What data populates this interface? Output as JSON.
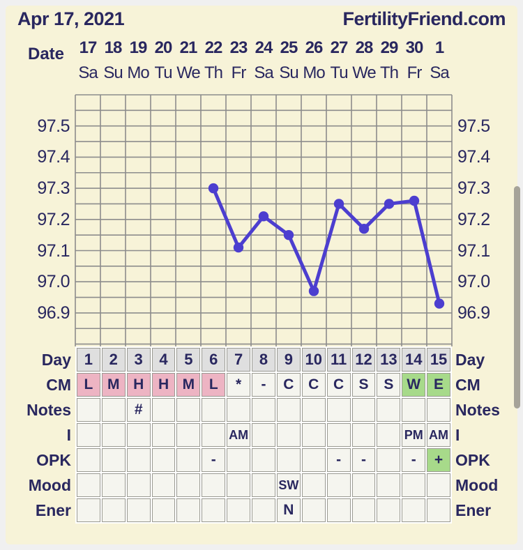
{
  "header": {
    "date_title": "Apr 17, 2021",
    "site": "FertilityFriend.com"
  },
  "axis": {
    "date_label": "Date",
    "dates": [
      "17",
      "18",
      "19",
      "20",
      "21",
      "22",
      "23",
      "24",
      "25",
      "26",
      "27",
      "28",
      "29",
      "30",
      "1"
    ],
    "weekdays": [
      "Sa",
      "Su",
      "Mo",
      "Tu",
      "We",
      "Th",
      "Fr",
      "Sa",
      "Su",
      "Mo",
      "Tu",
      "We",
      "Th",
      "Fr",
      "Sa"
    ]
  },
  "chart_data": {
    "type": "line",
    "columns": 15,
    "x_days": [
      6,
      7,
      8,
      9,
      10,
      11,
      12,
      13,
      14,
      15
    ],
    "values": [
      97.3,
      97.11,
      97.21,
      97.15,
      96.97,
      97.25,
      97.17,
      97.25,
      97.26,
      96.93
    ],
    "yticks": [
      97.5,
      97.4,
      97.3,
      97.2,
      97.1,
      97.0,
      96.9
    ],
    "ylim": [
      96.8,
      97.6
    ],
    "grid_step": 0.05,
    "grid": true,
    "line_color": "#4c3ecf"
  },
  "table": {
    "rows": [
      {
        "key": "day",
        "label": "Day",
        "cells": [
          {
            "t": "1",
            "bg": "day"
          },
          {
            "t": "2",
            "bg": "day"
          },
          {
            "t": "3",
            "bg": "day"
          },
          {
            "t": "4",
            "bg": "day"
          },
          {
            "t": "5",
            "bg": "day"
          },
          {
            "t": "6",
            "bg": "day"
          },
          {
            "t": "7",
            "bg": "day"
          },
          {
            "t": "8",
            "bg": "day"
          },
          {
            "t": "9",
            "bg": "day"
          },
          {
            "t": "10",
            "bg": "day"
          },
          {
            "t": "11",
            "bg": "day"
          },
          {
            "t": "12",
            "bg": "day"
          },
          {
            "t": "13",
            "bg": "day"
          },
          {
            "t": "14",
            "bg": "day"
          },
          {
            "t": "15",
            "bg": "day"
          }
        ]
      },
      {
        "key": "cm",
        "label": "CM",
        "cells": [
          {
            "t": "L",
            "bg": "pink"
          },
          {
            "t": "M",
            "bg": "pink"
          },
          {
            "t": "H",
            "bg": "pink"
          },
          {
            "t": "H",
            "bg": "pink"
          },
          {
            "t": "M",
            "bg": "pink"
          },
          {
            "t": "L",
            "bg": "pink"
          },
          {
            "t": "*"
          },
          {
            "t": "-"
          },
          {
            "t": "C"
          },
          {
            "t": "C"
          },
          {
            "t": "C"
          },
          {
            "t": "S"
          },
          {
            "t": "S"
          },
          {
            "t": "W",
            "bg": "green"
          },
          {
            "t": "E",
            "bg": "green"
          }
        ]
      },
      {
        "key": "notes",
        "label": "Notes",
        "cells": [
          {
            "t": ""
          },
          {
            "t": ""
          },
          {
            "t": "#"
          },
          {
            "t": ""
          },
          {
            "t": ""
          },
          {
            "t": ""
          },
          {
            "t": ""
          },
          {
            "t": ""
          },
          {
            "t": ""
          },
          {
            "t": ""
          },
          {
            "t": ""
          },
          {
            "t": ""
          },
          {
            "t": ""
          },
          {
            "t": ""
          },
          {
            "t": ""
          }
        ]
      },
      {
        "key": "i",
        "label": "I",
        "cells": [
          {
            "t": ""
          },
          {
            "t": ""
          },
          {
            "t": ""
          },
          {
            "t": ""
          },
          {
            "t": ""
          },
          {
            "t": ""
          },
          {
            "t": "AM"
          },
          {
            "t": ""
          },
          {
            "t": ""
          },
          {
            "t": ""
          },
          {
            "t": ""
          },
          {
            "t": ""
          },
          {
            "t": ""
          },
          {
            "t": "PM"
          },
          {
            "t": "AM"
          }
        ]
      },
      {
        "key": "opk",
        "label": "OPK",
        "cells": [
          {
            "t": ""
          },
          {
            "t": ""
          },
          {
            "t": ""
          },
          {
            "t": ""
          },
          {
            "t": ""
          },
          {
            "t": "-"
          },
          {
            "t": ""
          },
          {
            "t": ""
          },
          {
            "t": ""
          },
          {
            "t": ""
          },
          {
            "t": "-"
          },
          {
            "t": "-"
          },
          {
            "t": ""
          },
          {
            "t": "-"
          },
          {
            "t": "+",
            "bg": "green"
          }
        ]
      },
      {
        "key": "mood",
        "label": "Mood",
        "cells": [
          {
            "t": ""
          },
          {
            "t": ""
          },
          {
            "t": ""
          },
          {
            "t": ""
          },
          {
            "t": ""
          },
          {
            "t": ""
          },
          {
            "t": ""
          },
          {
            "t": ""
          },
          {
            "t": "SW"
          },
          {
            "t": ""
          },
          {
            "t": ""
          },
          {
            "t": ""
          },
          {
            "t": ""
          },
          {
            "t": ""
          },
          {
            "t": ""
          }
        ]
      },
      {
        "key": "ener",
        "label": "Ener",
        "cells": [
          {
            "t": ""
          },
          {
            "t": ""
          },
          {
            "t": ""
          },
          {
            "t": ""
          },
          {
            "t": ""
          },
          {
            "t": ""
          },
          {
            "t": ""
          },
          {
            "t": ""
          },
          {
            "t": "N"
          },
          {
            "t": ""
          },
          {
            "t": ""
          },
          {
            "t": ""
          },
          {
            "t": ""
          },
          {
            "t": ""
          },
          {
            "t": ""
          }
        ]
      }
    ]
  },
  "colors": {
    "background": "#f7f3d8",
    "frame": "#f0f0f0",
    "text": "#29275f",
    "grid": "#8c8c8c",
    "line": "#4c3ecf",
    "scrollbar": "#a6a399",
    "cell_plain": "#f5f5ef",
    "cell_day": "#dfdfdf",
    "cell_pink": "#edb4c3",
    "cell_green": "#a7da8a"
  }
}
